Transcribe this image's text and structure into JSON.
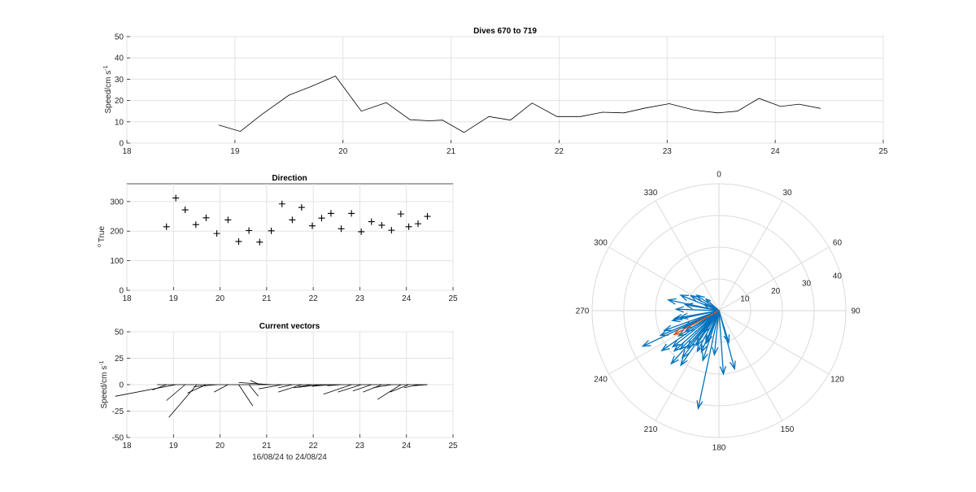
{
  "chart_data": [
    {
      "type": "line",
      "title": "Dives 670 to 719",
      "ylabel": "Speed/cm s",
      "ylabel_sup": "-1",
      "xlim": [
        18,
        25
      ],
      "ylim": [
        0,
        50
      ],
      "xticks": [
        "18",
        "19",
        "20",
        "21",
        "22",
        "23",
        "24",
        "25"
      ],
      "yticks": [
        "0",
        "10",
        "20",
        "30",
        "40",
        "50"
      ],
      "grid": true,
      "x": [
        18.85,
        19.05,
        19.25,
        19.5,
        19.7,
        19.93,
        20.17,
        20.4,
        20.62,
        20.8,
        20.92,
        21.12,
        21.35,
        21.55,
        21.75,
        21.98,
        22.2,
        22.4,
        22.6,
        22.8,
        23.02,
        23.25,
        23.47,
        23.65,
        23.85,
        24.05,
        24.22,
        24.42
      ],
      "y": [
        8.5,
        5.5,
        13.5,
        22.5,
        26.5,
        31.5,
        15,
        19,
        11,
        10.5,
        10.8,
        5,
        12.5,
        10.8,
        18.8,
        12.5,
        12.5,
        14.5,
        14.2,
        16.5,
        18.5,
        15.5,
        14.2,
        15,
        21,
        17.2,
        18.3,
        16.3
      ]
    },
    {
      "type": "scatter",
      "title": "Direction",
      "ylabel": "True",
      "ylabel_sup": "o",
      "xlim": [
        18,
        25
      ],
      "ylim": [
        0,
        360
      ],
      "xticks": [
        "18",
        "19",
        "20",
        "21",
        "22",
        "23",
        "24",
        "25"
      ],
      "yticks": [
        "0",
        "100",
        "200",
        "300"
      ],
      "grid": true,
      "marker": "+",
      "x": [
        18.85,
        19.05,
        19.25,
        19.48,
        19.7,
        19.93,
        20.17,
        20.4,
        20.62,
        20.85,
        21.1,
        21.33,
        21.55,
        21.75,
        21.98,
        22.18,
        22.38,
        22.6,
        22.82,
        23.03,
        23.25,
        23.47,
        23.68,
        23.88,
        24.05,
        24.25,
        24.45
      ],
      "y": [
        215,
        312,
        272,
        222,
        245,
        192,
        238,
        165,
        202,
        163,
        201,
        292,
        238,
        280,
        218,
        244,
        260,
        208,
        260,
        198,
        232,
        220,
        203,
        258,
        215,
        225,
        250
      ]
    },
    {
      "type": "vector",
      "title": "Current vectors",
      "ylabel": "Speed/cm s",
      "ylabel_sup": "-1",
      "xlabel": "16/08/24 to 24/08/24",
      "xlim": [
        18,
        25
      ],
      "ylim": [
        -50,
        50
      ],
      "xticks": [
        "18",
        "19",
        "20",
        "21",
        "22",
        "23",
        "24",
        "25"
      ],
      "yticks": [
        "-50",
        "-25",
        "0",
        "25",
        "50"
      ],
      "grid": true,
      "baseline": [
        18.65,
        24.45
      ],
      "vectors": [
        {
          "x": 18.85,
          "u": -0.3,
          "v": -5
        },
        {
          "x": 19.05,
          "u": -1.3,
          "v": -11
        },
        {
          "x": 19.25,
          "u": -0.4,
          "v": -15
        },
        {
          "x": 19.5,
          "u": -0.6,
          "v": -31
        },
        {
          "x": 19.7,
          "u": -0.4,
          "v": -8
        },
        {
          "x": 19.93,
          "u": -0.5,
          "v": -2
        },
        {
          "x": 20.17,
          "u": -0.3,
          "v": -7
        },
        {
          "x": 20.4,
          "u": 0.3,
          "v": -20
        },
        {
          "x": 20.62,
          "u": 0.2,
          "v": -11
        },
        {
          "x": 20.85,
          "u": -0.2,
          "v": 4
        },
        {
          "x": 21.1,
          "u": -0.7,
          "v": 2
        },
        {
          "x": 21.33,
          "u": -0.5,
          "v": -4
        },
        {
          "x": 21.55,
          "u": -0.3,
          "v": -3
        },
        {
          "x": 21.75,
          "u": -0.5,
          "v": -7
        },
        {
          "x": 21.98,
          "u": -0.3,
          "v": -2
        },
        {
          "x": 22.18,
          "u": -0.6,
          "v": -3
        },
        {
          "x": 22.38,
          "u": -0.4,
          "v": -1.5
        },
        {
          "x": 22.6,
          "u": -0.3,
          "v": -1
        },
        {
          "x": 22.82,
          "u": -0.6,
          "v": -9
        },
        {
          "x": 23.03,
          "u": -0.5,
          "v": -7
        },
        {
          "x": 23.25,
          "u": -0.4,
          "v": -6
        },
        {
          "x": 23.47,
          "u": -0.4,
          "v": -7
        },
        {
          "x": 23.68,
          "u": -0.4,
          "v": -3
        },
        {
          "x": 23.88,
          "u": -0.5,
          "v": -14
        },
        {
          "x": 24.05,
          "u": -0.4,
          "v": -7
        },
        {
          "x": 24.25,
          "u": -0.3,
          "v": -3
        },
        {
          "x": 24.45,
          "u": -0.3,
          "v": -1
        }
      ]
    },
    {
      "type": "compass",
      "angle_ticks": [
        "0",
        "30",
        "60",
        "90",
        "120",
        "150",
        "180",
        "210",
        "240",
        "270",
        "300",
        "330"
      ],
      "radial_ticks": [
        "10",
        "20",
        "30",
        "40"
      ],
      "rmax": 40,
      "arrow_color": "#0072BD",
      "mean_color": "#D95319",
      "arrows": [
        {
          "bearing": 215,
          "speed": 8.5
        },
        {
          "bearing": 312,
          "speed": 5.5
        },
        {
          "bearing": 272,
          "speed": 13.5
        },
        {
          "bearing": 222,
          "speed": 22.5
        },
        {
          "bearing": 245,
          "speed": 26.5
        },
        {
          "bearing": 192,
          "speed": 31.5
        },
        {
          "bearing": 238,
          "speed": 15
        },
        {
          "bearing": 165,
          "speed": 19
        },
        {
          "bearing": 202,
          "speed": 11
        },
        {
          "bearing": 163,
          "speed": 10.5
        },
        {
          "bearing": 201,
          "speed": 10.8
        },
        {
          "bearing": 292,
          "speed": 5
        },
        {
          "bearing": 238,
          "speed": 12.5
        },
        {
          "bearing": 280,
          "speed": 10.8
        },
        {
          "bearing": 218,
          "speed": 18.8
        },
        {
          "bearing": 244,
          "speed": 12.5
        },
        {
          "bearing": 260,
          "speed": 12.5
        },
        {
          "bearing": 208,
          "speed": 14.5
        },
        {
          "bearing": 260,
          "speed": 14.2
        },
        {
          "bearing": 198,
          "speed": 16.5
        },
        {
          "bearing": 232,
          "speed": 18.5
        },
        {
          "bearing": 220,
          "speed": 15.5
        },
        {
          "bearing": 203,
          "speed": 14.2
        },
        {
          "bearing": 258,
          "speed": 15
        },
        {
          "bearing": 215,
          "speed": 21
        },
        {
          "bearing": 225,
          "speed": 17.2
        },
        {
          "bearing": 250,
          "speed": 18.3
        },
        {
          "bearing": 282,
          "speed": 16.3
        },
        {
          "bearing": 292,
          "speed": 13
        },
        {
          "bearing": 298,
          "speed": 10
        },
        {
          "bearing": 305,
          "speed": 8.5
        },
        {
          "bearing": 247,
          "speed": 20
        },
        {
          "bearing": 235,
          "speed": 22
        },
        {
          "bearing": 228,
          "speed": 19
        },
        {
          "bearing": 213,
          "speed": 13
        },
        {
          "bearing": 186,
          "speed": 14
        },
        {
          "bearing": 176,
          "speed": 20
        }
      ],
      "mean_arrow": {
        "bearing": 242,
        "speed": 16
      }
    }
  ]
}
